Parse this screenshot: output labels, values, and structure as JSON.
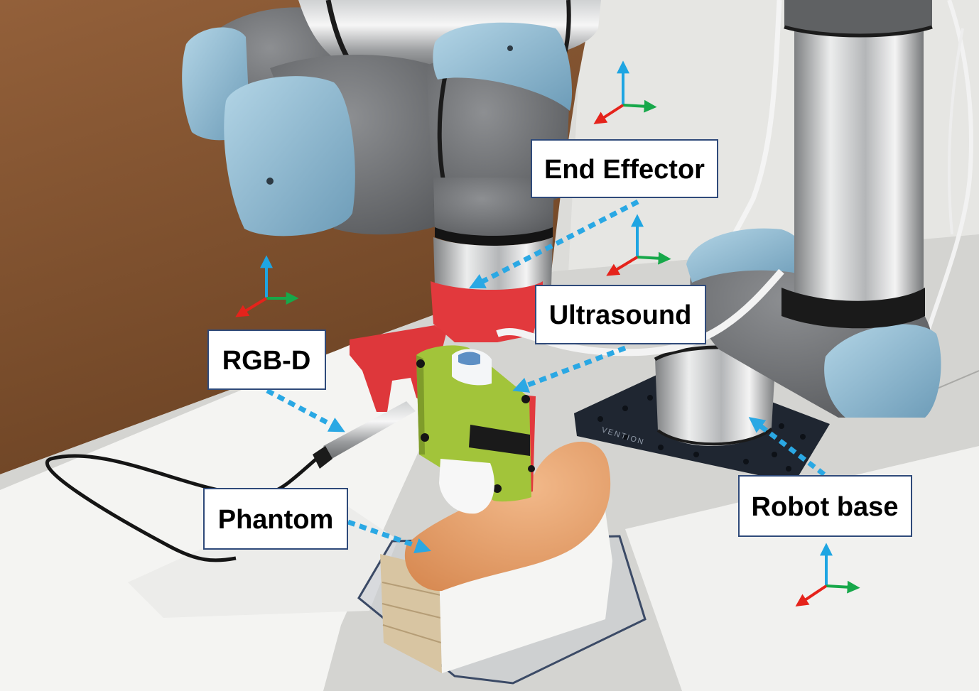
{
  "labels": {
    "end_effector": "End Effector",
    "ultrasound": "Ultrasound",
    "rgbd": "RGB-D",
    "phantom": "Phantom",
    "robot_base": "Robot base"
  },
  "plate_brand": "VENTION",
  "colors": {
    "axis_x": "#e5231b",
    "axis_y": "#17a84a",
    "axis_z": "#1ea5e2",
    "callout_arrow": "#2aa8e4",
    "label_border": "#2f4a7a",
    "robot_cap": "#8fbcd6",
    "robot_body": "#6c6e71",
    "mount_red": "#e2393d",
    "plate_green": "#a2c43a",
    "phantom_orange": "#e6a370"
  }
}
